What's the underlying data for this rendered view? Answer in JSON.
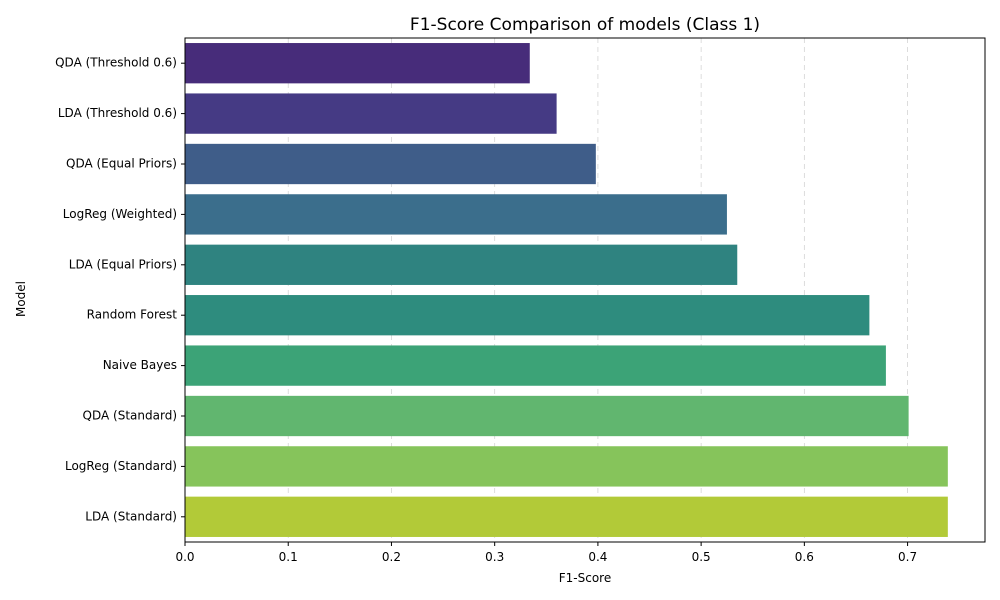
{
  "chart_data": {
    "type": "bar",
    "orientation": "horizontal",
    "title": "F1-Score Comparison of models (Class 1)",
    "xlabel": "F1-Score",
    "ylabel": "Model",
    "xlim": [
      0,
      0.775
    ],
    "xticks": [
      "0.0",
      "0.1",
      "0.2",
      "0.3",
      "0.4",
      "0.5",
      "0.6",
      "0.7"
    ],
    "grid": "x-dashed",
    "categories": [
      "QDA (Threshold 0.6)",
      "LDA (Threshold 0.6)",
      "QDA (Equal Priors)",
      "LogReg (Weighted)",
      "LDA (Equal Priors)",
      "Random Forest",
      "Naive Bayes",
      "QDA (Standard)",
      "LogReg (Standard)",
      "LDA (Standard)"
    ],
    "values": [
      0.334,
      0.36,
      0.398,
      0.525,
      0.535,
      0.663,
      0.679,
      0.701,
      0.739,
      0.739
    ],
    "colors": [
      "#472c7a",
      "#453a84",
      "#3f5d89",
      "#3b6e8c",
      "#2f8380",
      "#2e8c7e",
      "#3ca377",
      "#61b66f",
      "#86c45b",
      "#b2ca38"
    ]
  }
}
